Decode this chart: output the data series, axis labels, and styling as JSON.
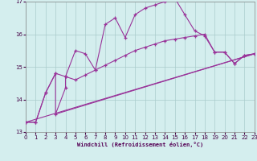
{
  "xlabel": "Windchill (Refroidissement éolien,°C)",
  "background_color": "#d4eeee",
  "grid_color": "#aacccc",
  "line_color": "#993399",
  "xlim": [
    0,
    23
  ],
  "ylim": [
    13,
    17
  ],
  "yticks": [
    13,
    14,
    15,
    16,
    17
  ],
  "xticks": [
    0,
    1,
    2,
    3,
    4,
    5,
    6,
    7,
    8,
    9,
    10,
    11,
    12,
    13,
    14,
    15,
    16,
    17,
    18,
    19,
    20,
    21,
    22,
    23
  ],
  "series1_x": [
    0,
    1,
    2,
    3,
    4,
    5,
    6,
    7,
    8,
    9,
    10,
    11,
    12,
    13,
    14,
    15,
    16,
    17,
    18,
    19,
    20,
    21,
    22,
    23
  ],
  "series1_y": [
    13.3,
    13.3,
    14.2,
    14.8,
    14.7,
    15.5,
    15.4,
    14.9,
    16.3,
    16.5,
    15.9,
    16.6,
    16.8,
    16.9,
    17.0,
    17.1,
    16.6,
    16.1,
    15.95,
    15.45,
    15.45,
    15.1,
    15.35,
    15.4
  ],
  "series2_x": [
    0,
    1,
    2,
    3,
    3,
    4,
    4,
    5,
    6,
    7,
    8,
    9,
    10,
    11,
    12,
    13,
    14,
    15,
    16,
    17,
    18,
    19,
    20,
    21,
    22,
    23
  ],
  "series2_y": [
    13.3,
    13.3,
    14.2,
    14.8,
    13.55,
    14.35,
    14.7,
    14.6,
    14.75,
    14.9,
    15.05,
    15.2,
    15.35,
    15.5,
    15.6,
    15.7,
    15.8,
    15.85,
    15.9,
    15.95,
    16.0,
    15.45,
    15.45,
    15.1,
    15.35,
    15.4
  ],
  "trend1_x": [
    0,
    23
  ],
  "trend1_y": [
    13.3,
    15.4
  ],
  "trend2_x": [
    3,
    23
  ],
  "trend2_y": [
    13.55,
    15.4
  ]
}
